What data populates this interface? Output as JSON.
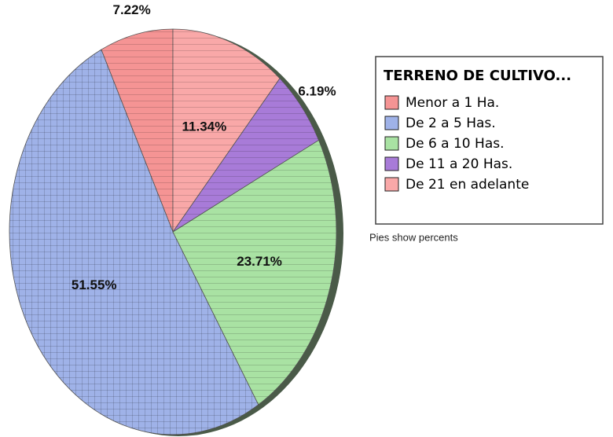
{
  "chart_data": {
    "type": "pie",
    "title": "TERRENO DE CULTIVO...",
    "note": "Pies show percents",
    "categories": [
      "Menor a 1 Ha.",
      "De 2 a 5 Has.",
      "De 6 a 10 Has.",
      "De 11 a 20 Has.",
      "De 21 en adelante"
    ],
    "values": [
      7.22,
      51.55,
      23.71,
      6.19,
      11.34
    ],
    "value_labels": [
      "7.22%",
      "51.55%",
      "23.71%",
      "6.19%",
      "11.34%"
    ],
    "colors": [
      "#f59494",
      "#9fb2e8",
      "#a9e2a3",
      "#a87bd8",
      "#f9a8a8"
    ],
    "legend": "right"
  }
}
